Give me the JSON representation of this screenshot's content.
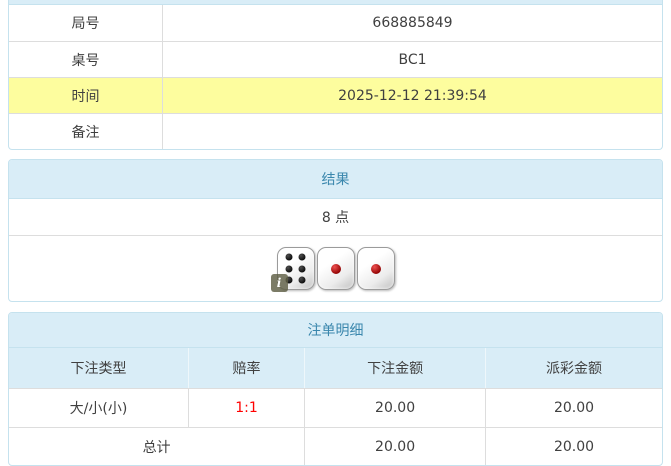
{
  "info_table": {
    "rows": [
      {
        "label": "局号",
        "value": "668885849"
      },
      {
        "label": "桌号",
        "value": "BC1"
      },
      {
        "label": "时间",
        "value": "2025-12-12 21:39:54",
        "highlight": true
      },
      {
        "label": "备注",
        "value": ""
      }
    ]
  },
  "result_panel": {
    "title": "结果",
    "points": "8 点",
    "dice": [
      6,
      1,
      1
    ],
    "info_icon": "i"
  },
  "bets_panel": {
    "title": "注单明细",
    "columns": [
      "下注类型",
      "赔率",
      "下注金额",
      "派彩金额"
    ],
    "rows": [
      {
        "type": "大/小(小)",
        "odds": "1:1",
        "bet": "20.00",
        "payout": "20.00"
      }
    ],
    "total": {
      "label": "总计",
      "bet": "20.00",
      "payout": "20.00"
    }
  },
  "colors": {
    "header_bg": "#d9edf7",
    "header_text": "#3a87ad",
    "panel_border": "#c5e2ee",
    "row_border": "#dddddd",
    "highlight_bg": "#fdfd9e",
    "odds_red": "#ff0000",
    "text": "#404040"
  }
}
